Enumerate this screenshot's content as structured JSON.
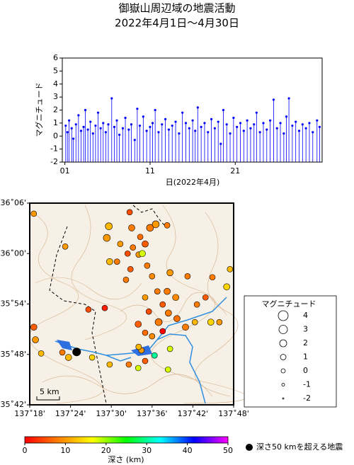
{
  "chart_data": [
    {
      "type": "stem",
      "title": "御嶽山周辺域の地震活動",
      "subtitle": "2022年4月1日～4月30日",
      "xlabel": "日(2022年4月)",
      "ylabel": "マグニチュード",
      "color": "#0000ff",
      "xlim": [
        0.7,
        31.2
      ],
      "xticks": [
        {
          "value": 1,
          "label": "01"
        },
        11,
        21
      ],
      "ylim": [
        -2,
        6
      ],
      "yticks": [
        -2,
        -1,
        0,
        1,
        2,
        3,
        4,
        5,
        6
      ],
      "x": [
        1.1,
        1.3,
        1.5,
        1.8,
        2.0,
        2.3,
        2.6,
        2.9,
        3.2,
        3.4,
        3.7,
        4.0,
        4.3,
        4.6,
        4.9,
        5.2,
        5.5,
        5.8,
        6.1,
        6.5,
        6.8,
        7.1,
        7.4,
        7.8,
        8.1,
        8.5,
        8.8,
        9.2,
        9.5,
        9.8,
        10.2,
        10.6,
        11.0,
        11.3,
        11.6,
        12.0,
        12.4,
        12.8,
        13.2,
        13.6,
        14.0,
        14.4,
        14.8,
        15.2,
        15.6,
        16.0,
        16.3,
        16.6,
        17.0,
        17.4,
        17.8,
        18.2,
        18.6,
        19.0,
        19.3,
        19.6,
        20.0,
        20.4,
        20.8,
        21.2,
        21.6,
        22.0,
        22.4,
        22.8,
        23.2,
        23.5,
        23.9,
        24.3,
        24.7,
        25.1,
        25.5,
        25.9,
        26.3,
        26.7,
        27.0,
        27.3,
        27.7,
        28.1,
        28.5,
        28.9,
        29.3,
        29.7,
        30.1,
        30.6,
        30.9
      ],
      "values": [
        0.8,
        0.3,
        1.2,
        0.6,
        -0.2,
        0.9,
        1.6,
        0.4,
        0.7,
        2.0,
        0.5,
        1.1,
        0.2,
        0.8,
        1.8,
        0.6,
        1.0,
        0.3,
        0.9,
        2.9,
        0.7,
        1.2,
        0.1,
        0.6,
        1.4,
        0.5,
        0.9,
        -0.3,
        2.1,
        0.8,
        1.5,
        0.4,
        0.7,
        1.0,
        2.0,
        0.3,
        0.9,
        1.3,
        0.5,
        0.8,
        1.1,
        0.2,
        1.8,
        1.0,
        0.6,
        1.2,
        0.4,
        2.2,
        0.7,
        1.0,
        0.3,
        1.3,
        0.6,
        1.1,
        -0.6,
        2.0,
        0.9,
        0.2,
        1.4,
        0.7,
        1.0,
        0.4,
        1.2,
        0.6,
        0.9,
        1.8,
        0.3,
        1.0,
        0.5,
        1.2,
        2.8,
        0.6,
        1.0,
        0.2,
        1.5,
        2.9,
        0.8,
        1.1,
        0.4,
        0.9,
        0.6,
        1.0,
        0.3,
        1.2,
        0.7
      ]
    },
    {
      "type": "map",
      "xlim": [
        137.3,
        137.8
      ],
      "ylim": [
        35.7,
        36.1
      ],
      "xticks": [
        {
          "value": 137.3,
          "label": "137˚18'"
        },
        {
          "value": 137.4,
          "label": "137˚24'"
        },
        {
          "value": 137.5,
          "label": "137˚30'"
        },
        {
          "value": 137.6,
          "label": "137˚36'"
        },
        {
          "value": 137.7,
          "label": "137˚42'"
        },
        {
          "value": 137.8,
          "label": "137˚48'"
        }
      ],
      "yticks": [
        {
          "value": 35.7,
          "label": "35˚42'"
        },
        {
          "value": 35.8,
          "label": "35˚48'"
        },
        {
          "value": 35.9,
          "label": "35˚54'"
        },
        {
          "value": 36.0,
          "label": "36˚00'"
        },
        {
          "value": 36.1,
          "label": "36˚06'"
        }
      ],
      "scale_label": "5 km",
      "points": {
        "lon": [
          137.494,
          137.489,
          137.55,
          137.595,
          137.609,
          137.571,
          137.553,
          137.583,
          137.54,
          137.567,
          137.496,
          137.547,
          137.588,
          137.576,
          137.637,
          137.387,
          137.31,
          137.545,
          137.536,
          137.6,
          137.644,
          137.687,
          137.748,
          137.791,
          137.783,
          137.613,
          137.658,
          137.626,
          137.592,
          137.64,
          137.661,
          137.618,
          137.566,
          137.583,
          137.6,
          137.626,
          137.682,
          137.705,
          137.744,
          137.71,
          137.731,
          137.765,
          137.484,
          137.444,
          137.31,
          137.314,
          137.328,
          137.395,
          137.38,
          137.453,
          137.496,
          137.543,
          137.583,
          137.606,
          137.566,
          137.639,
          137.644,
          137.616,
          137.637,
          137.583,
          137.574,
          137.567,
          137.514,
          137.522
        ],
        "lat": [
          36.054,
          36.031,
          36.051,
          36.051,
          36.058,
          36.033,
          36.012,
          36.019,
          36.0,
          35.998,
          35.984,
          35.969,
          35.976,
          36.0,
          36.056,
          36.014,
          36.079,
          36.082,
          35.948,
          35.955,
          35.962,
          35.955,
          35.953,
          35.969,
          35.934,
          35.925,
          35.913,
          35.899,
          35.885,
          35.882,
          35.871,
          35.864,
          35.86,
          35.843,
          35.836,
          35.846,
          35.854,
          35.864,
          35.864,
          35.899,
          35.913,
          35.864,
          35.892,
          35.889,
          35.854,
          35.829,
          35.802,
          35.794,
          35.804,
          35.794,
          35.78,
          35.78,
          35.787,
          35.798,
          35.773,
          35.77,
          35.811,
          35.864,
          35.925,
          35.913,
          35.808,
          35.815,
          35.984,
          36.019
        ],
        "depth": [
          12,
          10,
          8,
          8,
          10,
          7,
          8,
          6,
          5,
          10,
          12,
          6,
          8,
          18,
          8,
          10,
          10,
          5,
          8,
          9,
          10,
          8,
          8,
          12,
          14,
          8,
          9,
          6,
          5,
          8,
          7,
          10,
          6,
          7,
          9,
          0,
          8,
          12,
          14,
          8,
          6,
          10,
          2,
          5,
          6,
          10,
          12,
          12,
          8,
          14,
          12,
          8,
          6,
          30,
          18,
          18,
          18,
          8,
          8,
          10,
          10,
          12,
          8,
          10
        ],
        "magnitude": [
          2,
          2,
          1.5,
          2,
          2,
          1,
          1,
          1.5,
          1,
          1,
          1.5,
          1,
          1,
          1.5,
          1,
          1,
          1,
          1,
          1,
          1,
          1.5,
          1,
          1,
          1,
          1.5,
          1,
          1.5,
          1,
          1,
          1.5,
          1.5,
          1,
          1.5,
          1,
          1,
          1,
          1.5,
          1,
          1.5,
          1,
          1,
          1,
          1,
          1,
          1.5,
          1.5,
          1,
          1.5,
          1,
          1,
          1,
          1,
          1,
          1,
          1,
          1,
          1,
          2,
          1.5,
          1,
          1,
          1,
          1,
          1
        ]
      },
      "deep_events": {
        "label": "深さ50 kmを超える地震",
        "color": "#000000",
        "lon": [
          137.415
        ],
        "lat": [
          35.805
        ],
        "magnitude": [
          3
        ]
      },
      "magnitude_legend": {
        "title": "マグニチュード",
        "values": [
          4,
          3,
          2,
          1,
          0,
          -1,
          -2
        ]
      },
      "colorbar": {
        "label": "深さ (km)",
        "lim": [
          0,
          50
        ],
        "ticks": [
          0,
          10,
          20,
          30,
          40,
          50
        ],
        "colors": [
          "#ff0000",
          "#ff8000",
          "#ffff00",
          "#00ff00",
          "#00ffff",
          "#0000ff",
          "#ff00ff"
        ]
      }
    }
  ]
}
